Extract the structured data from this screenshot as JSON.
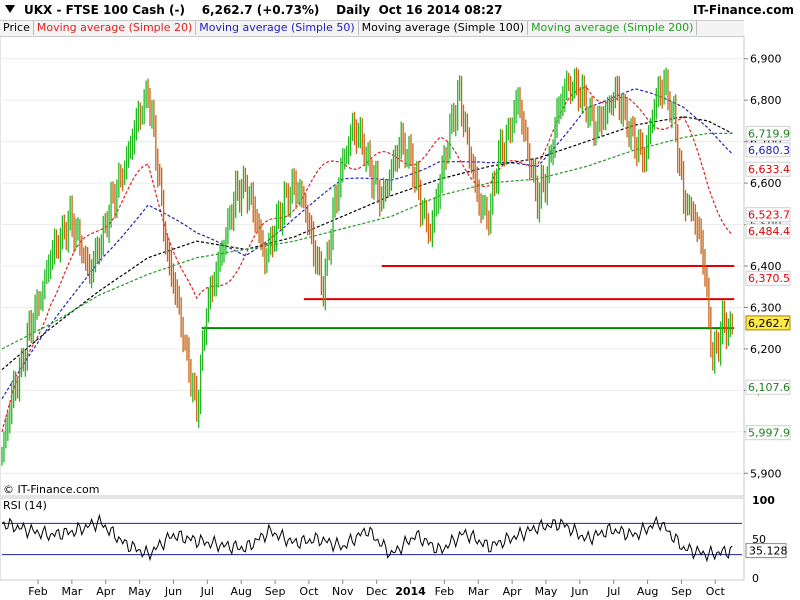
{
  "header": {
    "ticker": "UKX - FTSE 100 Cash (-)",
    "price": "6,262.7",
    "change": "(+0.73%)",
    "period": "Daily",
    "datetime": "Oct 16 2014 08:27",
    "brand": "IT-Finance.com",
    "watermark": "© IT-Finance.com"
  },
  "legend": [
    {
      "label": "Price",
      "color": "#000000"
    },
    {
      "label": "Moving average (Simple 20)",
      "color": "#e02020"
    },
    {
      "label": "Moving average (Simple 50)",
      "color": "#2020c0"
    },
    {
      "label": "Moving average (Simple 100)",
      "color": "#000000"
    },
    {
      "label": "Moving average (Simple 200)",
      "color": "#20a020"
    }
  ],
  "colors": {
    "up": "#22b822",
    "down": "#c86414",
    "ma20": "#e02020",
    "ma50": "#2020c0",
    "ma100": "#000000",
    "ma200": "#209a20",
    "resistance": "#e00000",
    "support": "#008800",
    "rsi": "#000000",
    "rsi_band": "#2020a0"
  },
  "chart_data": [
    {
      "type": "line",
      "title": "UKX - FTSE 100 Cash (-)",
      "x_tick_labels": [
        "Feb",
        "Mar",
        "Apr",
        "May",
        "Jun",
        "Jul",
        "Aug",
        "Sep",
        "Oct",
        "Nov",
        "Dec",
        "2014",
        "Feb",
        "Mar",
        "Apr",
        "May",
        "Jun",
        "Jul",
        "Aug",
        "Sep",
        "Oct"
      ],
      "ylim": [
        5850,
        6950
      ],
      "y_ticks": [
        5900,
        6000,
        6100,
        6200,
        6300,
        6400,
        6500,
        6600,
        6700,
        6800,
        6900
      ],
      "y_tick_labels": [
        "5,900",
        "6,000",
        "6,100",
        "6,200",
        "6,300",
        "6,400",
        "6,500",
        "6,600",
        "6,700",
        "6,800",
        "6,900"
      ],
      "price_series": {
        "name": "Price",
        "x": [
          0,
          20,
          40,
          60,
          80,
          100,
          120,
          140,
          160,
          180,
          200,
          220,
          240,
          260,
          280,
          300,
          320,
          340,
          360,
          380,
          400,
          420,
          440,
          460,
          480,
          500,
          520,
          540,
          560,
          580,
          600,
          620,
          640,
          660,
          680,
          700,
          720,
          740,
          760,
          780,
          800,
          820,
          840,
          860,
          880,
          900,
          920,
          940,
          960,
          980,
          1000,
          1020,
          1040,
          1060,
          1080,
          1100,
          1120,
          1140,
          1160,
          1180,
          1200,
          1220,
          1240,
          1260,
          1280,
          1300,
          1320,
          1340,
          1360,
          1380,
          1400,
          1420,
          1440,
          1450,
          1460,
          1470,
          1480,
          1490,
          1500
        ],
        "values": [
          5950,
          6080,
          6160,
          6260,
          6330,
          6420,
          6470,
          6510,
          6460,
          6380,
          6450,
          6530,
          6600,
          6670,
          6760,
          6820,
          6640,
          6420,
          6320,
          6180,
          6050,
          6300,
          6380,
          6480,
          6570,
          6600,
          6520,
          6420,
          6480,
          6560,
          6590,
          6560,
          6440,
          6350,
          6520,
          6650,
          6730,
          6700,
          6620,
          6560,
          6630,
          6700,
          6660,
          6550,
          6480,
          6600,
          6730,
          6810,
          6680,
          6550,
          6520,
          6660,
          6720,
          6800,
          6680,
          6560,
          6620,
          6760,
          6840,
          6830,
          6790,
          6730,
          6770,
          6820,
          6760,
          6700,
          6660,
          6790,
          6840,
          6760,
          6560,
          6530,
          6430,
          6300,
          6180,
          6210,
          6260,
          6250,
          6262.7
        ]
      },
      "moving_averages": [
        {
          "name": "Moving average (Simple 20)",
          "x": [
            0,
            100,
            200,
            300,
            400,
            500,
            600,
            700,
            800,
            900,
            1000,
            1100,
            1200,
            1300,
            1400,
            1450,
            1500
          ],
          "values": [
            6000,
            6330,
            6500,
            6630,
            6300,
            6430,
            6560,
            6660,
            6650,
            6690,
            6600,
            6670,
            6840,
            6770,
            6740,
            6600,
            6484.4
          ]
        },
        {
          "name": "Moving average (Simple 50)",
          "x": [
            0,
            100,
            200,
            300,
            400,
            500,
            600,
            700,
            800,
            900,
            1000,
            1100,
            1200,
            1300,
            1400,
            1450,
            1500
          ],
          "values": [
            6080,
            6250,
            6420,
            6550,
            6470,
            6430,
            6520,
            6600,
            6610,
            6660,
            6640,
            6640,
            6790,
            6820,
            6780,
            6740,
            6680.3
          ]
        },
        {
          "name": "Moving average (Simple 100)",
          "x": [
            0,
            100,
            200,
            300,
            400,
            500,
            600,
            700,
            800,
            900,
            1000,
            1100,
            1200,
            1300,
            1400,
            1450,
            1500
          ],
          "values": [
            6150,
            6250,
            6340,
            6420,
            6460,
            6440,
            6470,
            6520,
            6570,
            6610,
            6640,
            6660,
            6700,
            6740,
            6760,
            6750,
            6719.9
          ]
        },
        {
          "name": "Moving average (Simple 200)",
          "x": [
            0,
            100,
            200,
            300,
            400,
            500,
            600,
            700,
            800,
            900,
            1000,
            1100,
            1200,
            1300,
            1400,
            1450,
            1500
          ],
          "values": [
            6200,
            6260,
            6330,
            6380,
            6420,
            6440,
            6460,
            6490,
            6520,
            6570,
            6600,
            6610,
            6640,
            6680,
            6710,
            6720,
            6719.9
          ]
        }
      ],
      "horizontal_lines": [
        {
          "y": 6400,
          "x_from": 780,
          "x_to": 1500,
          "color": "#e00000"
        },
        {
          "y": 6320,
          "x_from": 620,
          "x_to": 1500,
          "color": "#e00000"
        },
        {
          "y": 6250,
          "x_from": 410,
          "x_to": 1500,
          "color": "#008800"
        }
      ],
      "right_labels": [
        {
          "value": 6719.9,
          "text": "6,719.9",
          "color": "#208020",
          "boxed": false
        },
        {
          "value": 6680.3,
          "text": "6,680.3",
          "color": "#2020a0",
          "boxed": false
        },
        {
          "value": 6633.4,
          "text": "6,633.4",
          "color": "#e00000",
          "boxed": false
        },
        {
          "value": 6523.7,
          "text": "6,523.7",
          "color": "#e00000",
          "boxed": false
        },
        {
          "value": 6484.4,
          "text": "6,484.4",
          "color": "#e00000",
          "boxed": false
        },
        {
          "value": 6370.5,
          "text": "6,370.5",
          "color": "#e00000",
          "boxed": false
        },
        {
          "value": 6262.7,
          "text": "6,262.7",
          "color": "#000000",
          "boxed": true
        },
        {
          "value": 6107.6,
          "text": "6,107.6",
          "color": "#208020",
          "boxed": false
        },
        {
          "value": 5997.9,
          "text": "5,997.9",
          "color": "#208020",
          "boxed": false
        }
      ]
    },
    {
      "type": "line",
      "title": "RSI (14)",
      "ylim": [
        0,
        100
      ],
      "y_ticks": [
        0,
        50,
        100
      ],
      "y_tick_labels": [
        "0",
        "50",
        "100"
      ],
      "bands": [
        70,
        30
      ],
      "current": "35.128",
      "x": [
        0,
        50,
        100,
        150,
        200,
        250,
        300,
        350,
        400,
        450,
        500,
        550,
        600,
        650,
        700,
        750,
        800,
        850,
        900,
        950,
        1000,
        1050,
        1100,
        1150,
        1200,
        1250,
        1300,
        1350,
        1400,
        1450,
        1500
      ],
      "values": [
        70,
        62,
        55,
        60,
        72,
        45,
        30,
        55,
        48,
        42,
        38,
        60,
        45,
        50,
        40,
        62,
        30,
        55,
        35,
        58,
        40,
        52,
        65,
        70,
        50,
        62,
        55,
        72,
        38,
        30,
        35.128
      ]
    }
  ]
}
